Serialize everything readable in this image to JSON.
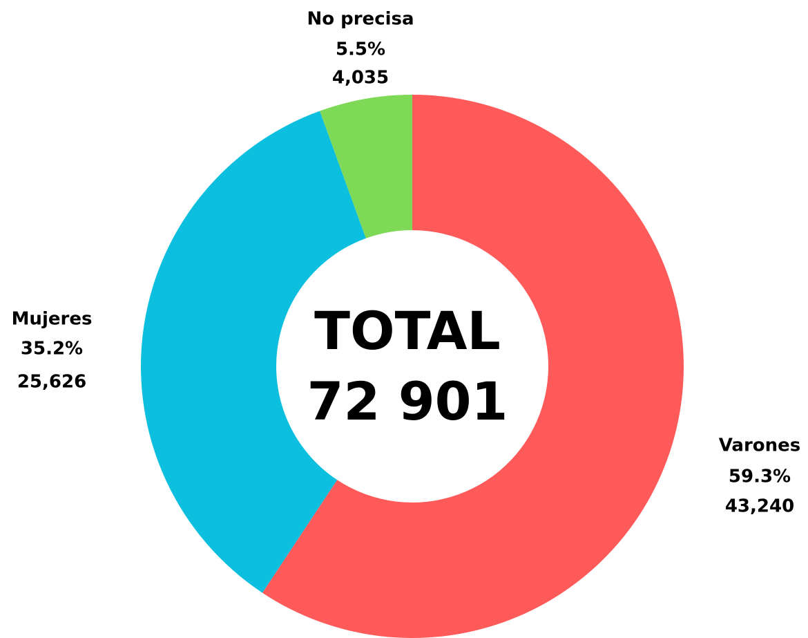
{
  "chart_data": {
    "type": "donut",
    "categories": [
      "Varones",
      "Mujeres",
      "No precisa"
    ],
    "values": [
      43240,
      25626,
      4035
    ],
    "value_labels": [
      "43,240",
      "25,626",
      "4,035"
    ],
    "percent_labels": [
      "59.3%",
      "35.2%",
      "5.5%"
    ],
    "colors": [
      "#ff5a5a",
      "#0dbfdf",
      "#7ed957"
    ],
    "center_title": "TOTAL",
    "center_total": "72 901"
  }
}
